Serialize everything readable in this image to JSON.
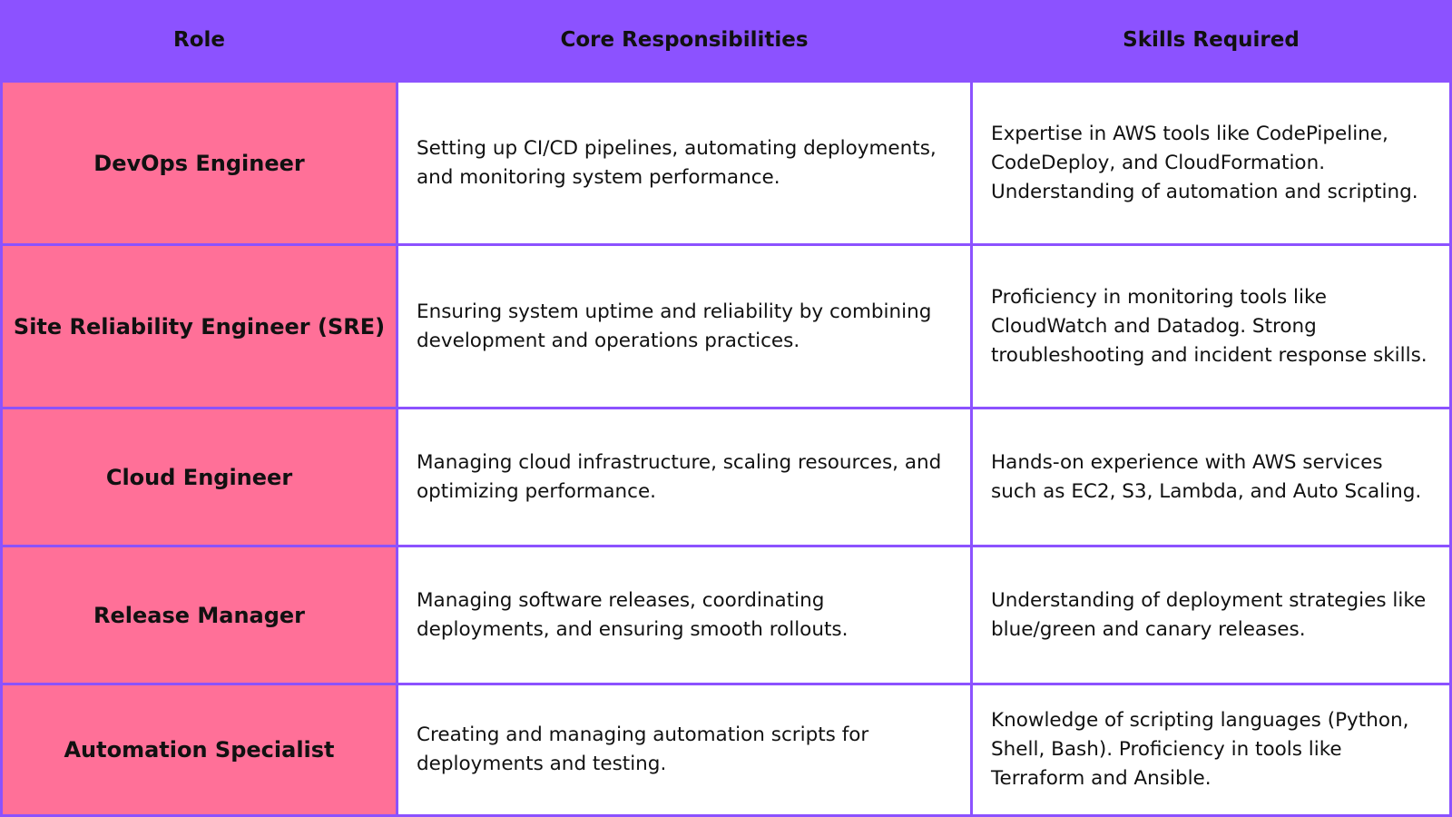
{
  "header": {
    "role": "Role",
    "responsibilities": "Core Responsibilities",
    "skills": "Skills Required"
  },
  "rows": [
    {
      "role": "DevOps Engineer",
      "responsibilities": "Setting up CI/CD pipelines, automating deployments, and monitoring system performance.",
      "skills": "Expertise in AWS tools like CodePipeline, CodeDeploy, and CloudFormation. Understanding of automation and scripting."
    },
    {
      "role": "Site Reliability Engineer (SRE)",
      "responsibilities": "Ensuring system uptime and reliability by combining development and operations practices.",
      "skills": "Proficiency in monitoring tools like CloudWatch and Datadog. Strong troubleshooting and incident response skills."
    },
    {
      "role": "Cloud Engineer",
      "responsibilities": "Managing cloud infrastructure, scaling resources, and optimizing performance.",
      "skills": "Hands-on experience with AWS services such as EC2, S3, Lambda, and Auto Scaling."
    },
    {
      "role": "Release Manager",
      "responsibilities": "Managing software releases, coordinating deployments, and ensuring smooth rollouts.",
      "skills": "Understanding of deployment strategies like blue/green and canary releases."
    },
    {
      "role": "Automation Specialist",
      "responsibilities": "Creating and managing automation scripts for deployments and testing.",
      "skills": "Knowledge of scripting languages (Python, Shell, Bash). Proficiency in tools like Terraform and Ansible."
    }
  ],
  "colors": {
    "header_bg": "#8c52ff",
    "role_bg": "#ff7098",
    "cell_bg": "#ffffff",
    "border": "#8c52ff"
  }
}
